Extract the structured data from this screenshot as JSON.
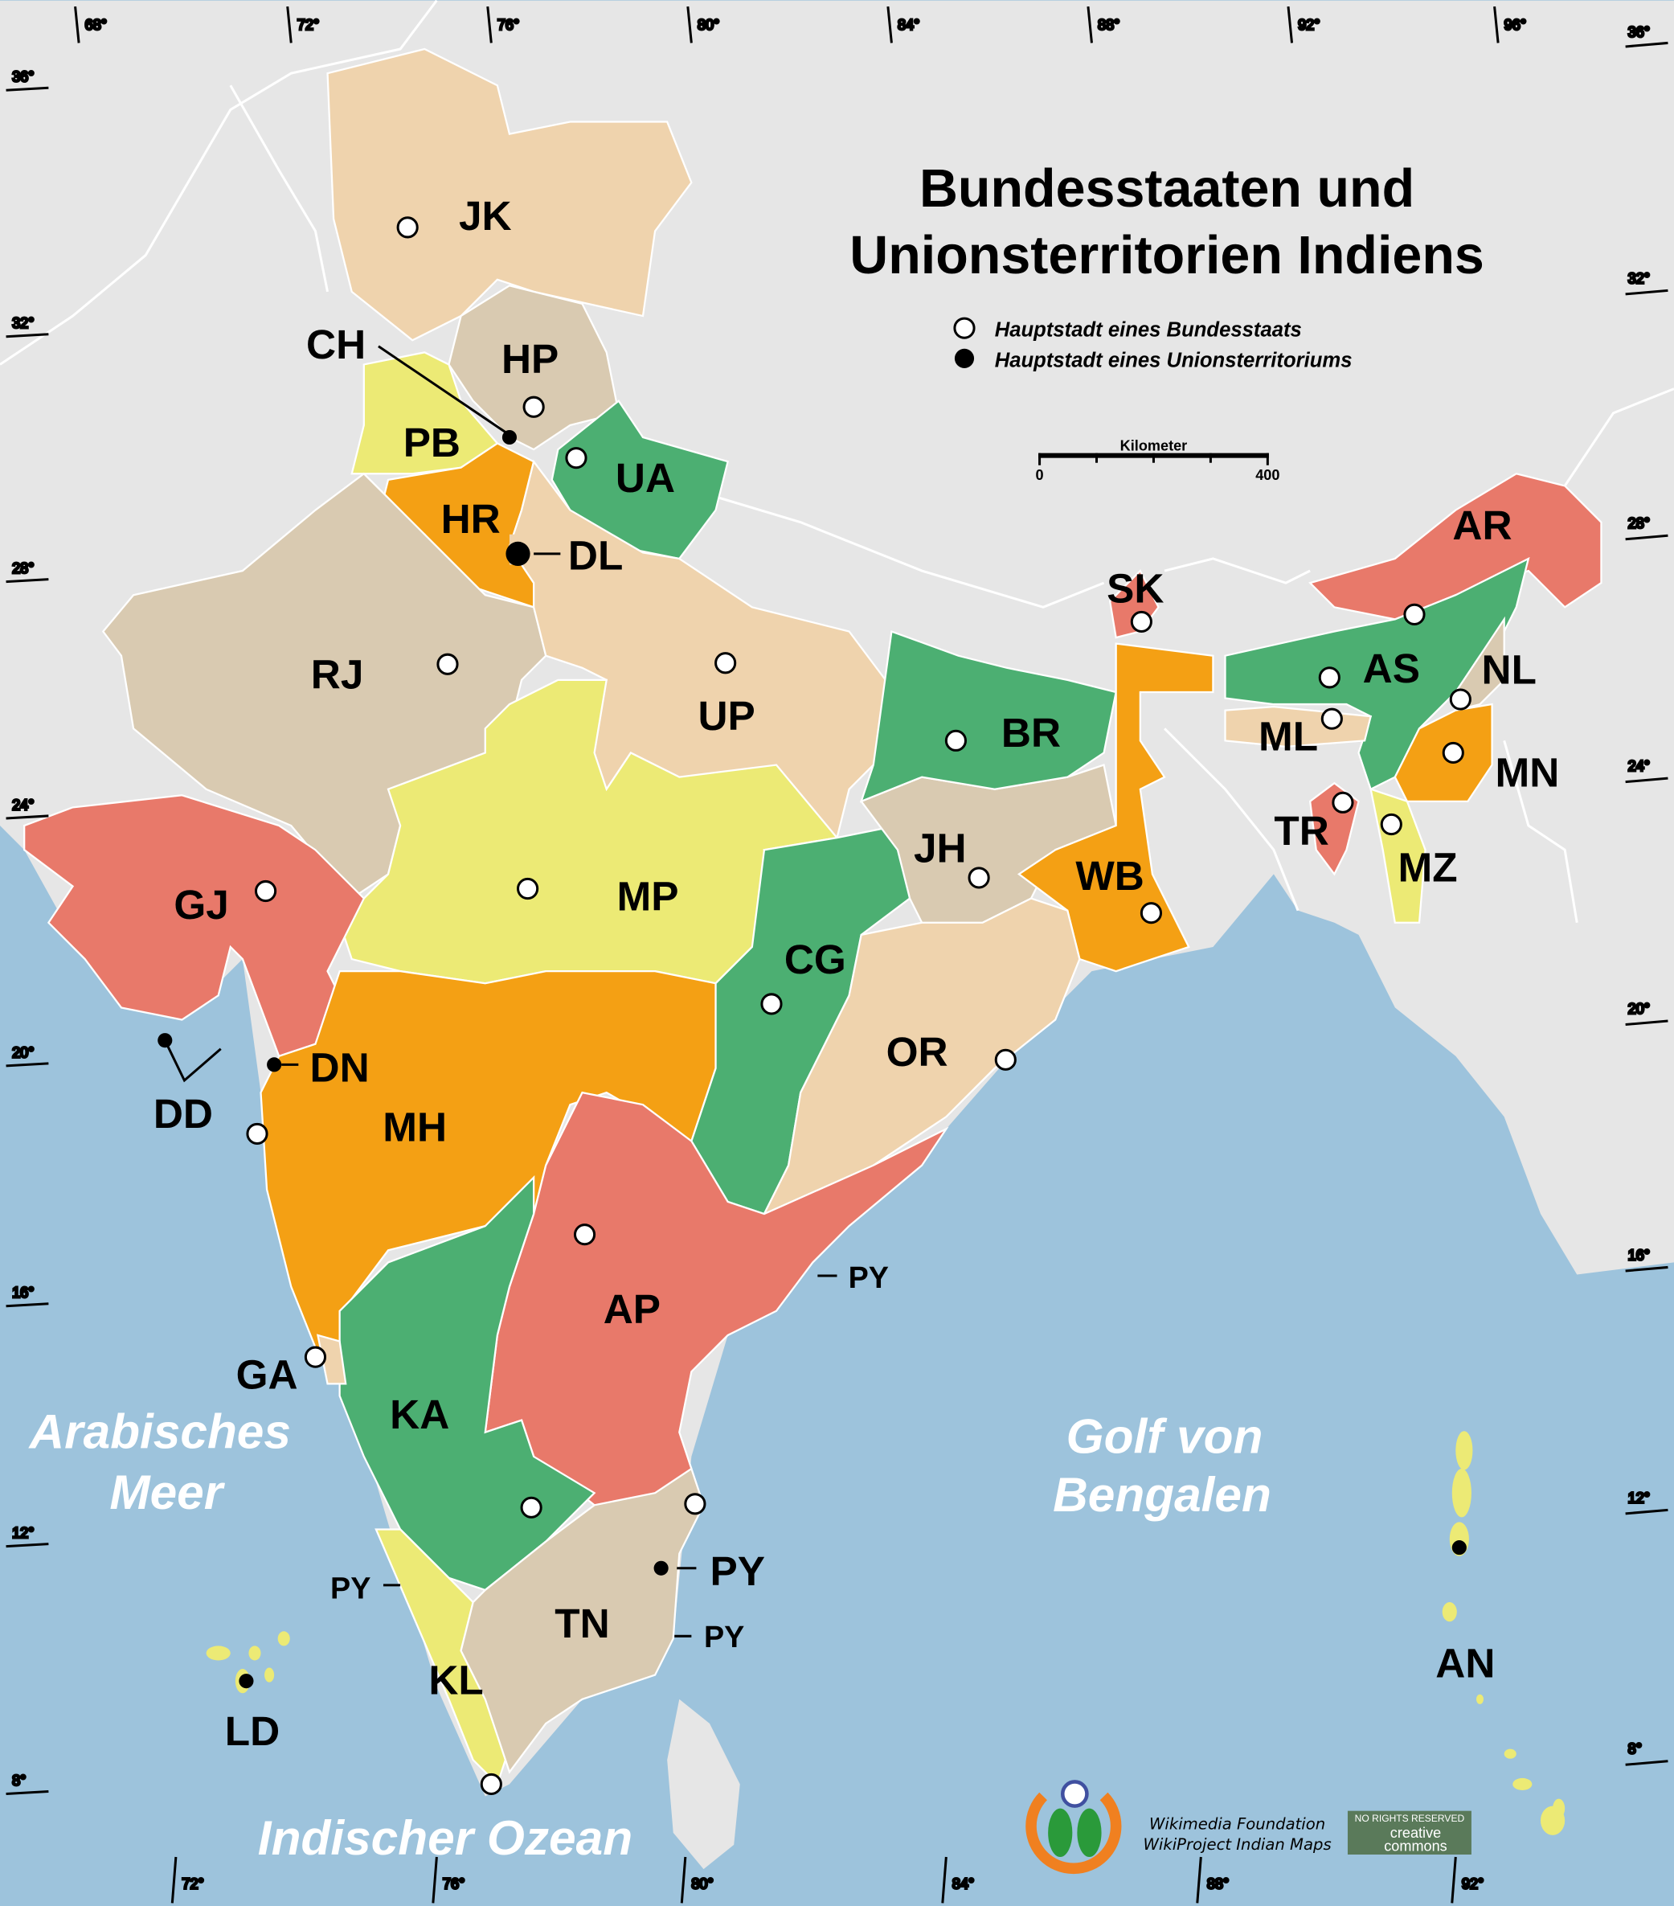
{
  "title": {
    "line1": "Bundesstaaten und",
    "line2": "Unionsterritorien Indiens"
  },
  "legend": {
    "state_capital": "Hauptstadt eines Bundesstaats",
    "ut_capital": "Hauptstadt eines Unionsterritoriums"
  },
  "scale": {
    "label": "Kilometer",
    "min": "0",
    "max": "400"
  },
  "seas": {
    "arabian_1": "Arabisches",
    "arabian_2": "Meer",
    "bengal_1": "Golf von",
    "bengal_2": "Bengalen",
    "indian_ocean": "Indischer Ozean"
  },
  "colors": {
    "sea": "#9dc3dc",
    "land": "#e6e6e6",
    "peach": "#efd3ad",
    "tan": "#d9cab1",
    "yellow": "#ecea75",
    "green": "#4caf72",
    "orange": "#f4a014",
    "salmon": "#e8796a"
  },
  "states": [
    {
      "code": "JK",
      "color": "peach"
    },
    {
      "code": "HP",
      "color": "tan"
    },
    {
      "code": "PB",
      "color": "yellow"
    },
    {
      "code": "UA",
      "color": "green"
    },
    {
      "code": "HR",
      "color": "orange"
    },
    {
      "code": "RJ",
      "color": "tan"
    },
    {
      "code": "UP",
      "color": "peach"
    },
    {
      "code": "MP",
      "color": "yellow"
    },
    {
      "code": "GJ",
      "color": "salmon"
    },
    {
      "code": "MH",
      "color": "orange"
    },
    {
      "code": "CG",
      "color": "green"
    },
    {
      "code": "JH",
      "color": "tan"
    },
    {
      "code": "BR",
      "color": "green"
    },
    {
      "code": "WB",
      "color": "orange"
    },
    {
      "code": "SK",
      "color": "salmon"
    },
    {
      "code": "OR",
      "color": "peach"
    },
    {
      "code": "AP",
      "color": "salmon"
    },
    {
      "code": "KA",
      "color": "green"
    },
    {
      "code": "KL",
      "color": "yellow"
    },
    {
      "code": "TN",
      "color": "tan"
    },
    {
      "code": "AR",
      "color": "salmon"
    },
    {
      "code": "AS",
      "color": "green"
    },
    {
      "code": "NL",
      "color": "tan"
    },
    {
      "code": "MN",
      "color": "orange"
    },
    {
      "code": "ML",
      "color": "peach"
    },
    {
      "code": "MZ",
      "color": "yellow"
    },
    {
      "code": "TR",
      "color": "salmon"
    },
    {
      "code": "GA",
      "color": "peach"
    }
  ],
  "territories": [
    "CH",
    "DL",
    "DN",
    "DD",
    "PY",
    "LD",
    "AN"
  ],
  "py_small_labels": [
    "PY",
    "PY",
    "PY"
  ],
  "graticule": {
    "top": [
      "68°",
      "72°",
      "76°",
      "80°",
      "84°",
      "88°",
      "92°",
      "96°",
      "36°"
    ],
    "bottom": [
      "72°",
      "76°",
      "80°",
      "84°",
      "88°",
      "92°"
    ],
    "left": [
      "36°",
      "32°",
      "28°",
      "24°",
      "20°",
      "16°",
      "12°",
      "8°"
    ],
    "right": [
      "32°",
      "28°",
      "24°",
      "20°",
      "16°",
      "12°",
      "8°"
    ]
  },
  "credits": {
    "line1": "Wikimedia Foundation",
    "line2": "WikiProject Indian Maps",
    "cc_top": "NO RIGHTS RESERVED",
    "cc_1": "creative",
    "cc_2": "commons"
  }
}
